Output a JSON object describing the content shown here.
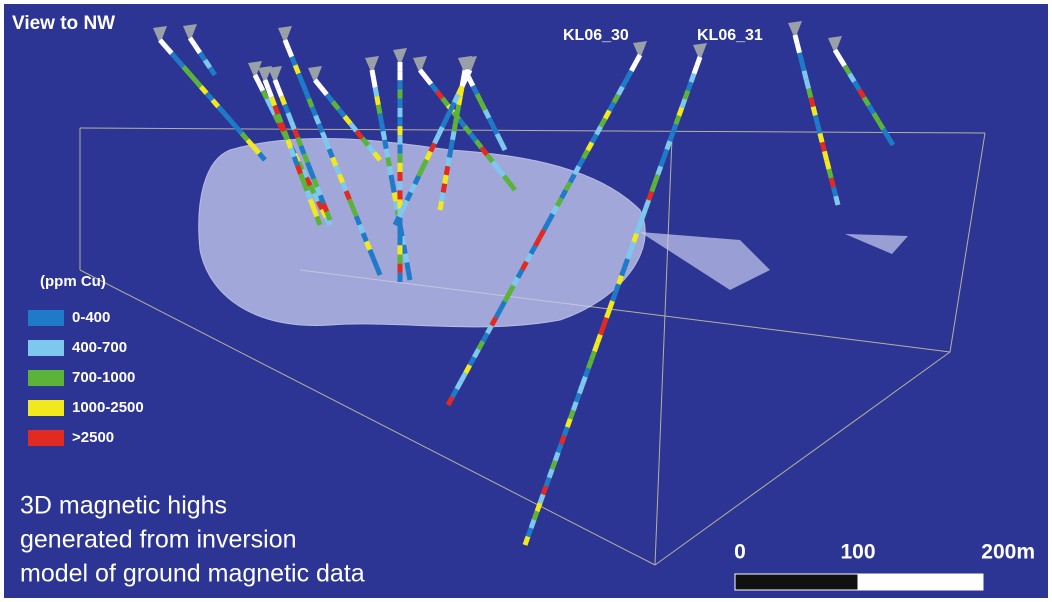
{
  "header": {
    "title": "View to NW"
  },
  "drill_hole_labels": [
    "KL06_30",
    "KL06_31"
  ],
  "legend": {
    "title": "(ppm Cu)",
    "items": [
      {
        "label": "0-400",
        "color": "#1f7ac8"
      },
      {
        "label": "400-700",
        "color": "#7ec8ee"
      },
      {
        "label": "700-1000",
        "color": "#5cb33a"
      },
      {
        "label": "1000-2500",
        "color": "#f2e81e"
      },
      {
        "label": ">2500",
        "color": "#e02a22"
      }
    ]
  },
  "caption": [
    "3D magnetic highs",
    "generated from inversion",
    "model of ground magnetic data"
  ],
  "scale_bar": {
    "labels": [
      "0",
      "100",
      "200m"
    ]
  }
}
